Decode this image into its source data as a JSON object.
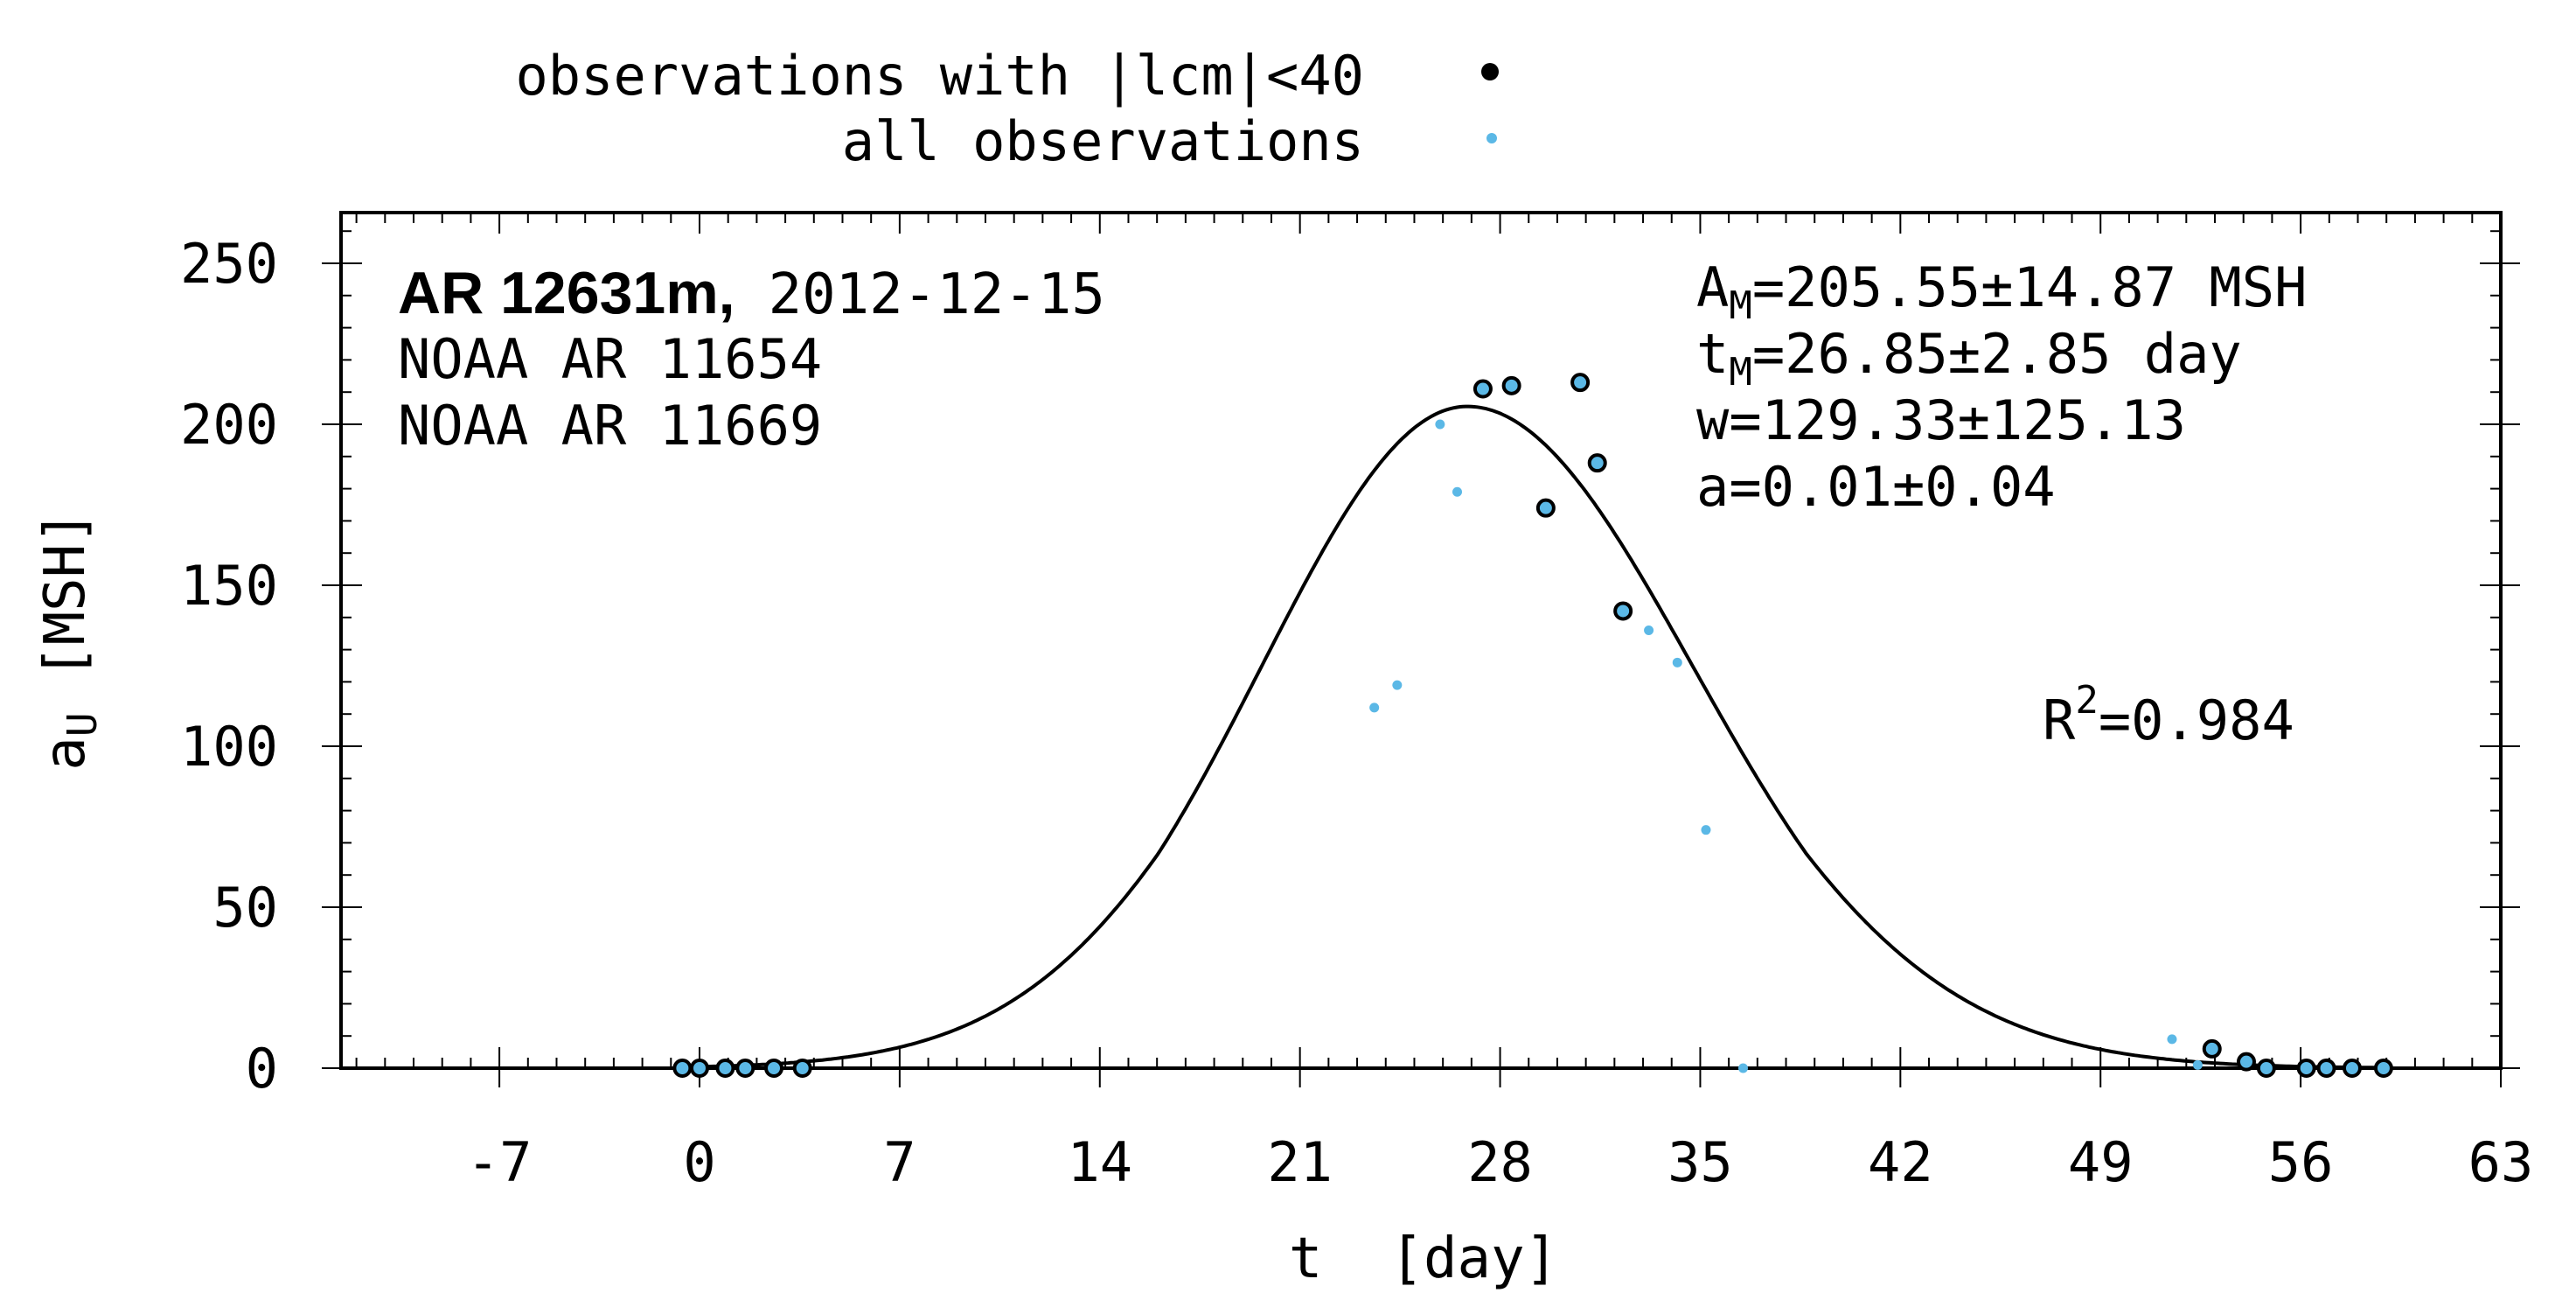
{
  "legend": {
    "filtered_label": "observations with |lcm|<40",
    "all_label": "all observations"
  },
  "annotation": {
    "region_bold": "AR 12631m,",
    "date": "2012-12-15",
    "noaa_lines": [
      "NOAA AR 11654",
      "NOAA AR 11669"
    ],
    "fit_params": {
      "A_label": "A",
      "A_sub": "M",
      "A_value": "=205.55±14.87 MSH",
      "t_label": "t",
      "t_sub": "M",
      "t_value": "=26.85±2.85 day",
      "w": "w=129.33±125.13",
      "a": "a=0.01±0.04"
    },
    "r2_label": "R",
    "r2_sup": "2",
    "r2_value": "=0.984"
  },
  "colors": {
    "filtered_fill": "#5bb8e6",
    "all_points": "#5bb8e6",
    "curve": "#000000",
    "axis": "#000000"
  },
  "chart_data": {
    "type": "scatter",
    "xlabel": "t  [day]",
    "ylabel_main": "a",
    "ylabel_sub": "U",
    "ylabel_unit": "[MSH]",
    "xlim": [
      -12,
      63
    ],
    "ylim": [
      0,
      260
    ],
    "xticks": [
      -7,
      0,
      7,
      14,
      21,
      28,
      35,
      42,
      49,
      56,
      63
    ],
    "yticks": [
      0,
      50,
      100,
      150,
      200,
      250
    ],
    "fit": {
      "A_M": 205.55,
      "t_M": 26.85,
      "w": 129.33,
      "a": 0.01
    },
    "series": [
      {
        "name": "observations with |lcm|<40",
        "points": [
          [
            -0.6,
            0
          ],
          [
            0.0,
            0
          ],
          [
            0.9,
            0
          ],
          [
            1.6,
            0
          ],
          [
            2.6,
            0
          ],
          [
            3.6,
            0
          ],
          [
            27.4,
            211
          ],
          [
            28.4,
            212
          ],
          [
            29.6,
            174
          ],
          [
            30.8,
            213
          ],
          [
            31.4,
            188
          ],
          [
            32.3,
            142
          ],
          [
            52.9,
            6
          ],
          [
            54.1,
            2
          ],
          [
            54.8,
            0
          ],
          [
            56.2,
            0
          ],
          [
            56.9,
            0
          ],
          [
            57.8,
            0
          ],
          [
            58.9,
            0
          ]
        ]
      },
      {
        "name": "all observations",
        "points": [
          [
            23.6,
            112
          ],
          [
            24.4,
            119
          ],
          [
            25.9,
            200
          ],
          [
            26.5,
            179
          ],
          [
            33.2,
            136
          ],
          [
            34.2,
            126
          ],
          [
            35.2,
            74
          ],
          [
            36.5,
            0
          ],
          [
            51.5,
            9
          ],
          [
            52.4,
            1
          ]
        ]
      }
    ]
  }
}
